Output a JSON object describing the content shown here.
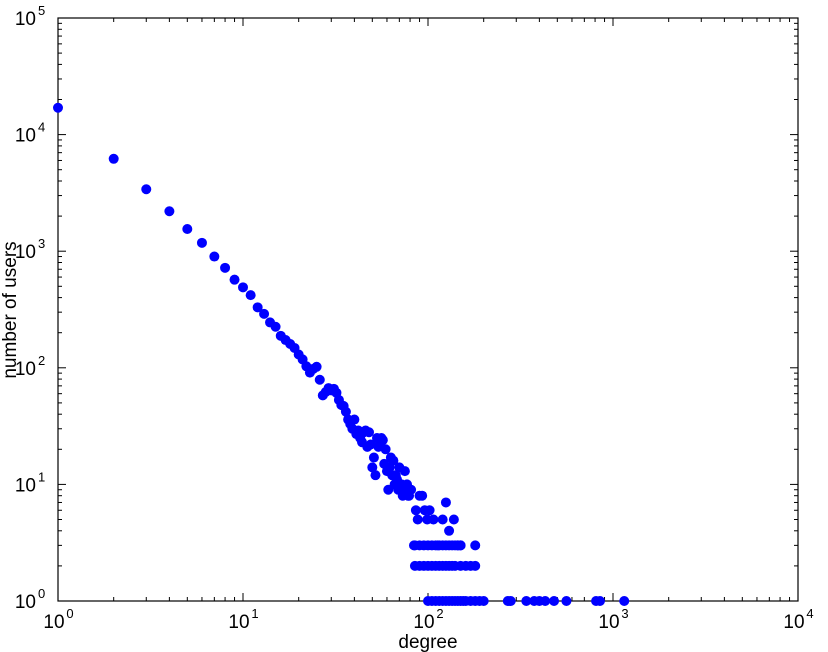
{
  "chart_data": {
    "type": "scatter",
    "title": "",
    "xlabel": "degree",
    "ylabel": "number of users",
    "x_scale": "log",
    "y_scale": "log",
    "xlim": [
      1,
      10000
    ],
    "ylim": [
      1,
      100000
    ],
    "grid": false,
    "legend": "none",
    "marker_color": "#0000ff",
    "x_ticks": [
      {
        "base": "10",
        "exp": "0"
      },
      {
        "base": "10",
        "exp": "1"
      },
      {
        "base": "10",
        "exp": "2"
      },
      {
        "base": "10",
        "exp": "3"
      },
      {
        "base": "10",
        "exp": "4"
      }
    ],
    "y_ticks": [
      {
        "base": "10",
        "exp": "0"
      },
      {
        "base": "10",
        "exp": "1"
      },
      {
        "base": "10",
        "exp": "2"
      },
      {
        "base": "10",
        "exp": "3"
      },
      {
        "base": "10",
        "exp": "4"
      },
      {
        "base": "10",
        "exp": "5"
      }
    ],
    "points": [
      [
        1,
        17000
      ],
      [
        2,
        6200
      ],
      [
        3,
        3400
      ],
      [
        4,
        2200
      ],
      [
        5,
        1550
      ],
      [
        6,
        1180
      ],
      [
        7,
        900
      ],
      [
        8,
        720
      ],
      [
        9,
        570
      ],
      [
        10,
        490
      ],
      [
        11,
        420
      ],
      [
        12,
        330
      ],
      [
        13,
        290
      ],
      [
        14,
        245
      ],
      [
        15,
        225
      ],
      [
        16,
        188
      ],
      [
        17,
        173
      ],
      [
        18,
        160
      ],
      [
        19,
        148
      ],
      [
        20,
        130
      ],
      [
        21,
        118
      ],
      [
        22,
        103
      ],
      [
        23,
        91
      ],
      [
        24,
        98
      ],
      [
        25,
        102
      ],
      [
        26,
        79
      ],
      [
        27,
        58
      ],
      [
        28,
        62
      ],
      [
        29,
        67
      ],
      [
        30,
        64
      ],
      [
        31,
        66
      ],
      [
        32,
        61
      ],
      [
        33,
        53
      ],
      [
        34,
        48
      ],
      [
        35,
        47
      ],
      [
        36,
        42
      ],
      [
        37,
        36
      ],
      [
        38,
        33
      ],
      [
        39,
        30
      ],
      [
        40,
        36
      ],
      [
        41,
        27
      ],
      [
        42,
        29
      ],
      [
        43,
        25
      ],
      [
        44,
        23
      ],
      [
        45,
        28
      ],
      [
        46,
        29
      ],
      [
        47,
        21
      ],
      [
        48,
        28
      ],
      [
        49,
        22
      ],
      [
        50,
        14
      ],
      [
        51,
        17
      ],
      [
        52,
        12
      ],
      [
        53,
        25
      ],
      [
        54,
        21
      ],
      [
        55,
        23
      ],
      [
        56,
        25
      ],
      [
        57,
        24
      ],
      [
        58,
        15
      ],
      [
        59,
        20
      ],
      [
        60,
        13
      ],
      [
        61,
        9
      ],
      [
        62,
        14
      ],
      [
        63,
        17
      ],
      [
        64,
        12
      ],
      [
        65,
        16
      ],
      [
        66,
        10
      ],
      [
        67,
        12
      ],
      [
        68,
        11
      ],
      [
        69,
        9
      ],
      [
        70,
        14
      ],
      [
        72,
        10
      ],
      [
        73,
        8
      ],
      [
        75,
        13
      ],
      [
        76,
        9
      ],
      [
        77,
        10
      ],
      [
        78,
        8
      ],
      [
        79,
        8
      ],
      [
        81,
        9
      ],
      [
        84,
        3
      ],
      [
        86,
        6
      ],
      [
        88,
        5
      ],
      [
        90,
        8
      ],
      [
        93,
        8
      ],
      [
        96,
        6
      ],
      [
        99,
        5
      ],
      [
        102,
        6
      ],
      [
        107,
        5
      ],
      [
        113,
        3
      ],
      [
        120,
        5
      ],
      [
        125,
        7
      ],
      [
        130,
        4
      ],
      [
        138,
        5
      ],
      [
        145,
        3
      ],
      [
        150,
        3
      ],
      [
        85,
        2
      ],
      [
        90,
        2
      ],
      [
        95,
        2
      ],
      [
        100,
        2
      ],
      [
        105,
        2
      ],
      [
        110,
        2
      ],
      [
        115,
        2
      ],
      [
        120,
        2
      ],
      [
        125,
        2
      ],
      [
        130,
        2
      ],
      [
        135,
        2
      ],
      [
        140,
        2
      ],
      [
        150,
        2
      ],
      [
        160,
        2
      ],
      [
        170,
        2
      ],
      [
        180,
        2
      ],
      [
        85,
        3
      ],
      [
        90,
        3
      ],
      [
        95,
        3
      ],
      [
        100,
        3
      ],
      [
        105,
        3
      ],
      [
        110,
        3
      ],
      [
        115,
        3
      ],
      [
        120,
        3
      ],
      [
        125,
        3
      ],
      [
        130,
        3
      ],
      [
        135,
        3
      ],
      [
        140,
        3
      ],
      [
        145,
        3
      ],
      [
        150,
        3
      ],
      [
        180,
        3
      ],
      [
        100,
        1
      ],
      [
        105,
        1
      ],
      [
        110,
        1
      ],
      [
        115,
        1
      ],
      [
        120,
        1
      ],
      [
        125,
        1
      ],
      [
        130,
        1
      ],
      [
        135,
        1
      ],
      [
        140,
        1
      ],
      [
        145,
        1
      ],
      [
        150,
        1
      ],
      [
        155,
        1
      ],
      [
        160,
        1
      ],
      [
        170,
        1
      ],
      [
        180,
        1
      ],
      [
        190,
        1
      ],
      [
        200,
        1
      ],
      [
        270,
        1
      ],
      [
        280,
        1
      ],
      [
        340,
        1
      ],
      [
        375,
        1
      ],
      [
        400,
        1
      ],
      [
        430,
        1
      ],
      [
        480,
        1
      ],
      [
        560,
        1
      ],
      [
        810,
        1
      ],
      [
        850,
        1
      ],
      [
        1150,
        1
      ]
    ]
  }
}
